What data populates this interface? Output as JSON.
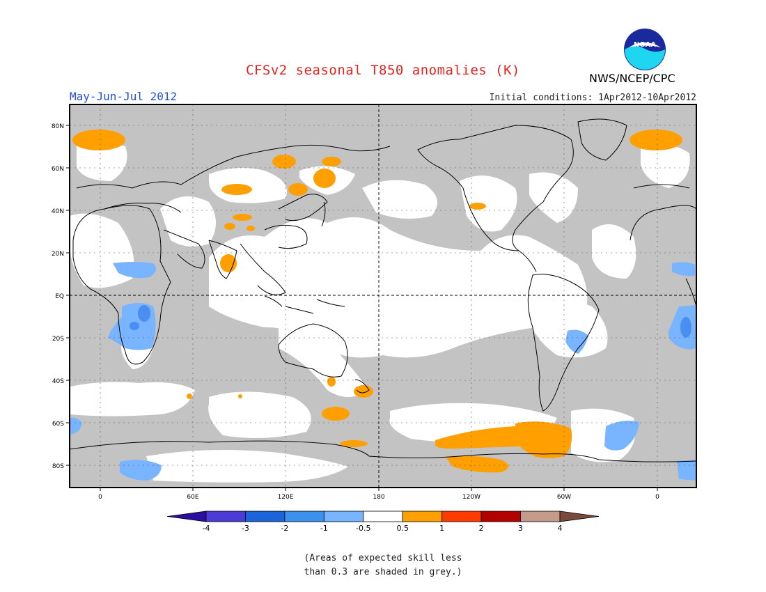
{
  "header": {
    "title": "CFSv2 seasonal T850 anomalies (K)",
    "period": "May-Jun-Jul 2012",
    "initial_conditions": "Initial conditions: 1Apr2012-10Apr2012",
    "organization": "NWS/NCEP/CPC",
    "logo_text": "NOAA"
  },
  "map": {
    "lat_labels": [
      "80N",
      "60N",
      "40N",
      "20N",
      "EQ",
      "20S",
      "40S",
      "60S",
      "80S"
    ],
    "lon_labels": [
      "0",
      "60E",
      "120E",
      "180",
      "120W",
      "60W",
      "0"
    ],
    "colors": {
      "grey_mask": "#c3c3c3",
      "land_line": "#000000",
      "positive": "#ff9f00",
      "negative_light": "#78b4ff",
      "negative_mid": "#4a8ff0"
    }
  },
  "colorbar": {
    "labels": [
      "-4",
      "-3",
      "-2",
      "-1",
      "-0.5",
      "0.5",
      "1",
      "2",
      "3",
      "4"
    ],
    "colors": [
      "#2a0fa0",
      "#4b3cd6",
      "#1c64d9",
      "#3c91ef",
      "#78b4ff",
      "#ffffff",
      "#ff9f00",
      "#ff3b00",
      "#b30000",
      "#c49b8a",
      "#7a4a3a"
    ]
  },
  "note": {
    "line1": "(Areas of expected skill less",
    "line2": "than 0.3 are shaded in grey.)"
  }
}
